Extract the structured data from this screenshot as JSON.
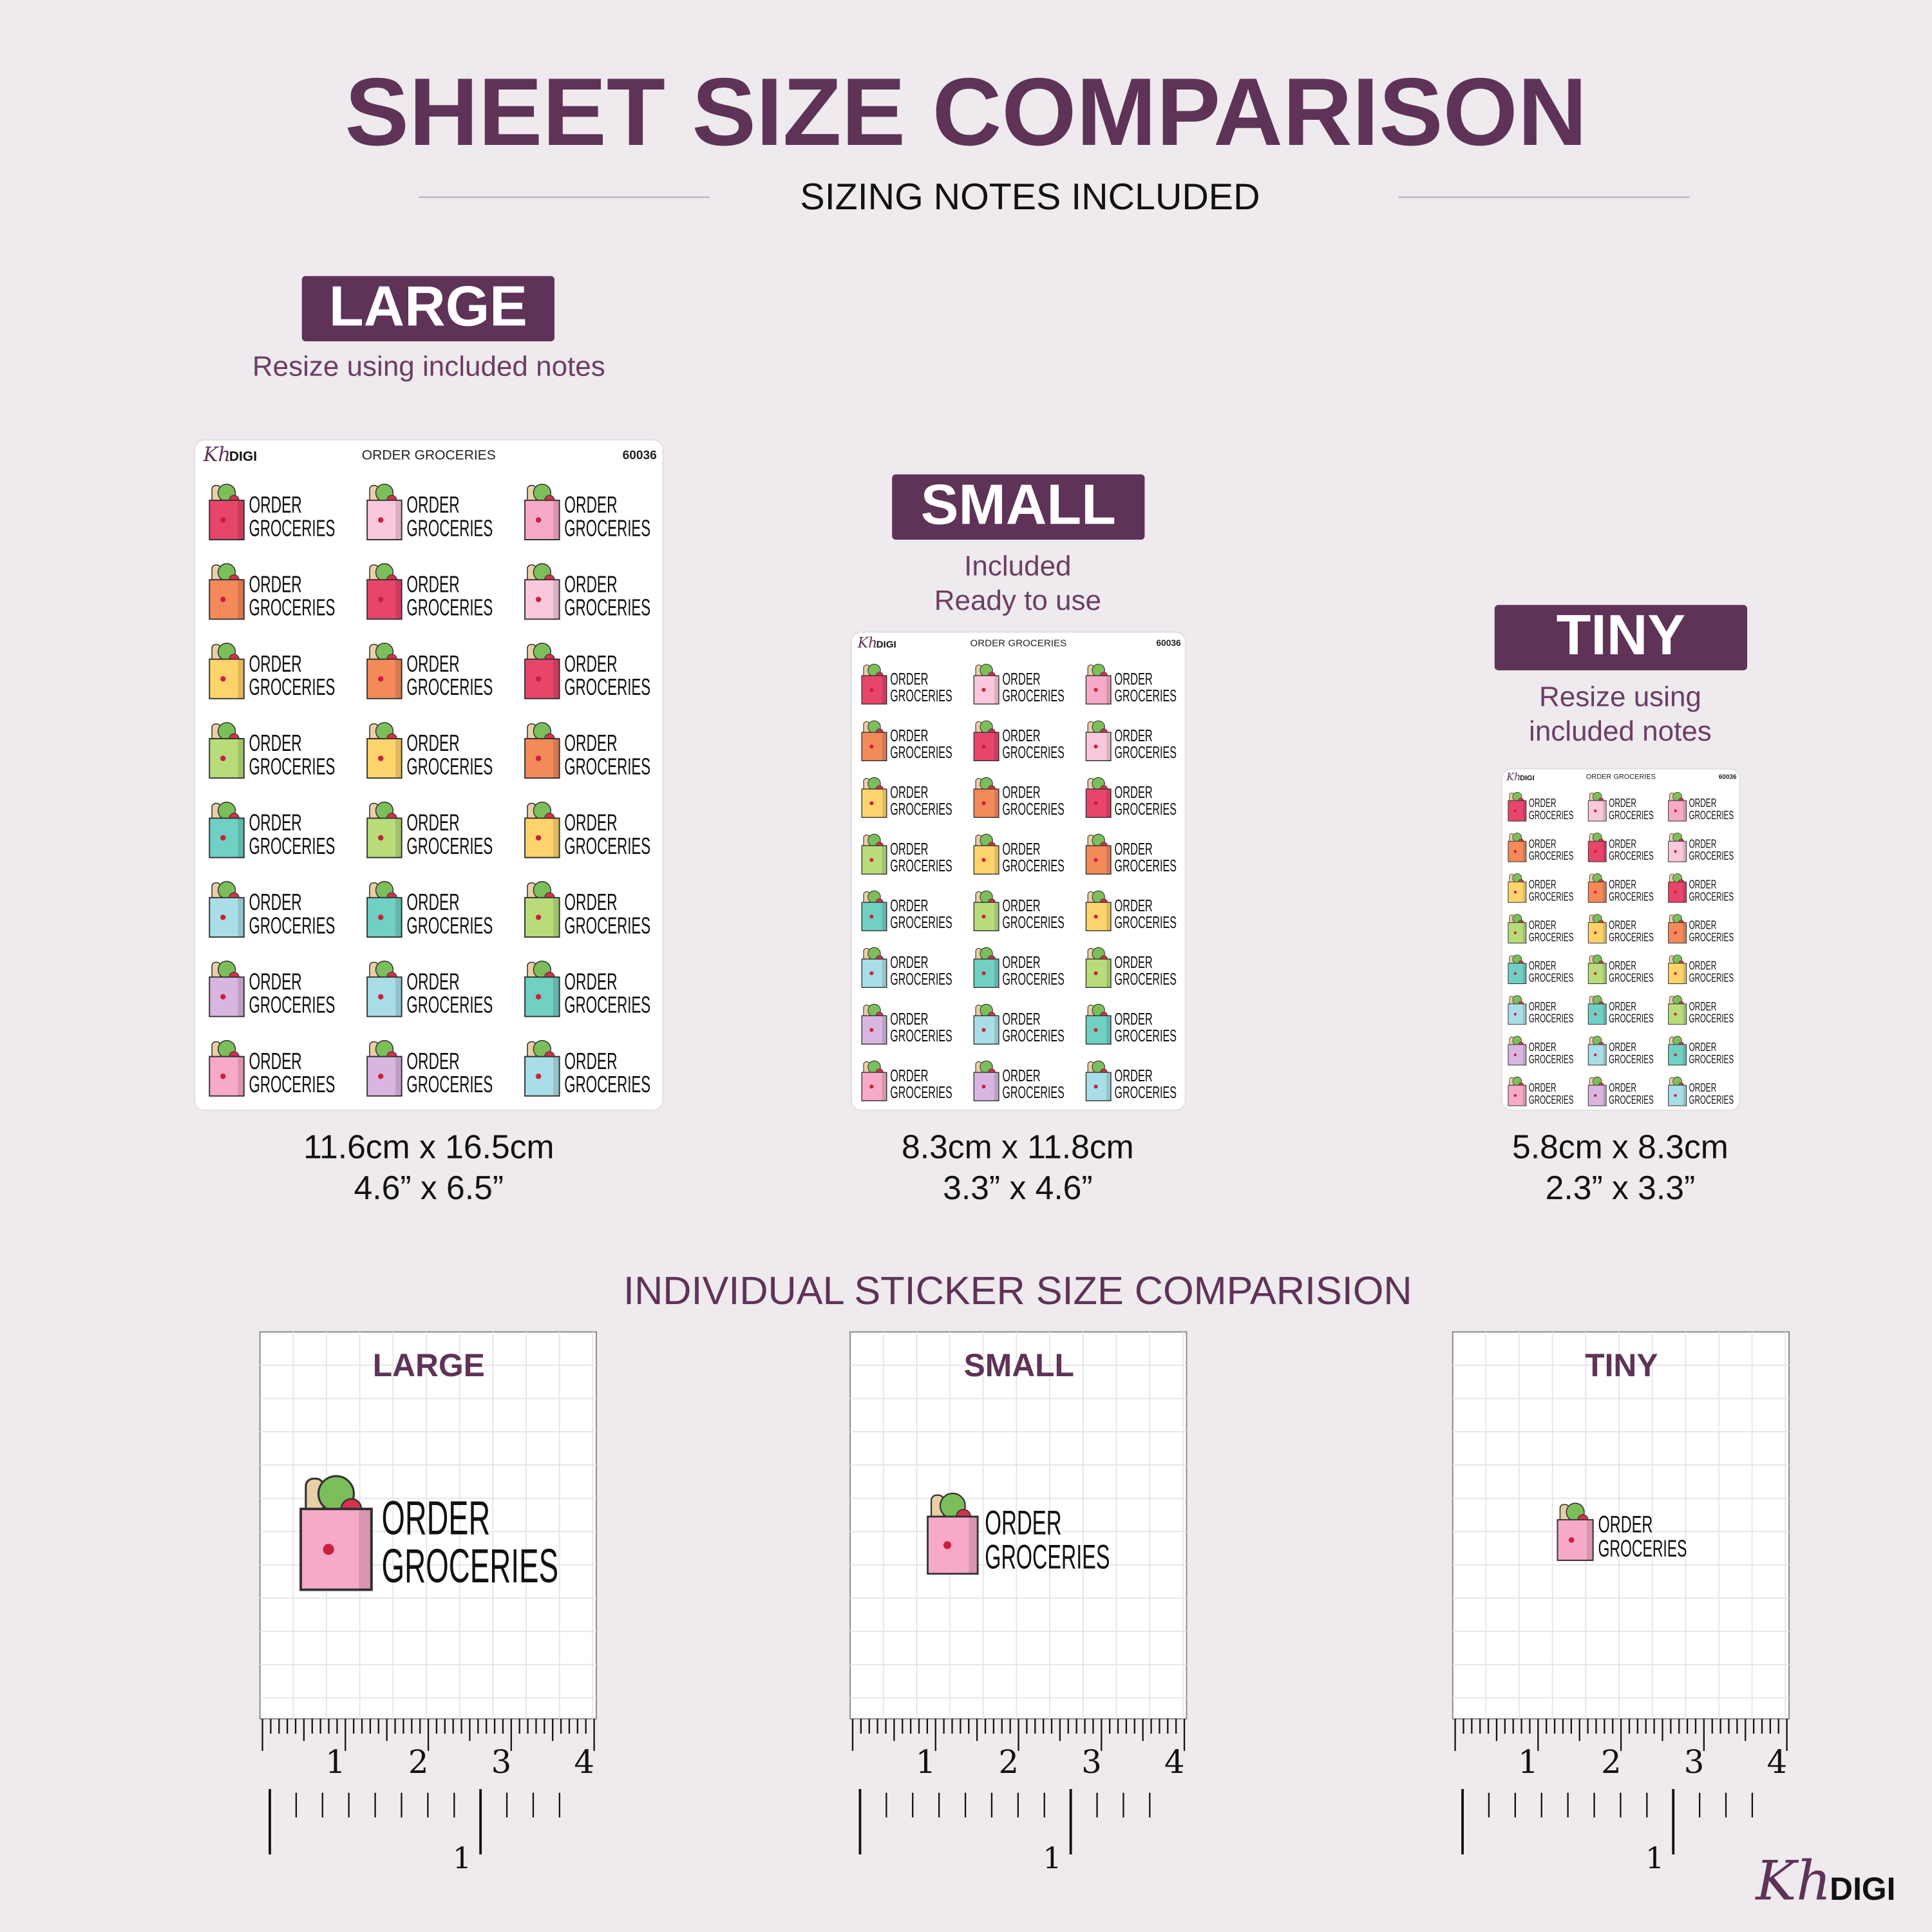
{
  "header": {
    "title": "SHEET SIZE COMPARISON",
    "subtitle": "SIZING NOTES INCLUDED"
  },
  "sheets": [
    {
      "label": "LARGE",
      "note": [
        "Resize using included notes"
      ],
      "dims_cm": "11.6cm x 16.5cm",
      "dims_in": "4.6” x 6.5”"
    },
    {
      "label": "SMALL",
      "note": [
        "Included",
        "Ready to use"
      ],
      "dims_cm": "8.3cm x 11.8cm",
      "dims_in": "3.3” x 4.6”"
    },
    {
      "label": "TINY",
      "note": [
        "Resize using",
        "included notes"
      ],
      "dims_cm": "5.8cm x 8.3cm",
      "dims_in": "2.3” x 3.3”"
    }
  ],
  "sheet_header": {
    "brand_script": "Kh",
    "brand": "DIGI",
    "title": "ORDER GROCERIES",
    "code": "60036"
  },
  "sticker": {
    "line1": "ORDER",
    "line2": "GROCERIES"
  },
  "individual": {
    "title": "INDIVIDUAL STICKER SIZE COMPARISION",
    "panels": [
      "LARGE",
      "SMALL",
      "TINY"
    ]
  },
  "ruler": {
    "upper": [
      "1",
      "2",
      "3",
      "4"
    ],
    "lower": "1"
  },
  "footer_logo": {
    "script": "Kh",
    "text": "DIGI"
  }
}
